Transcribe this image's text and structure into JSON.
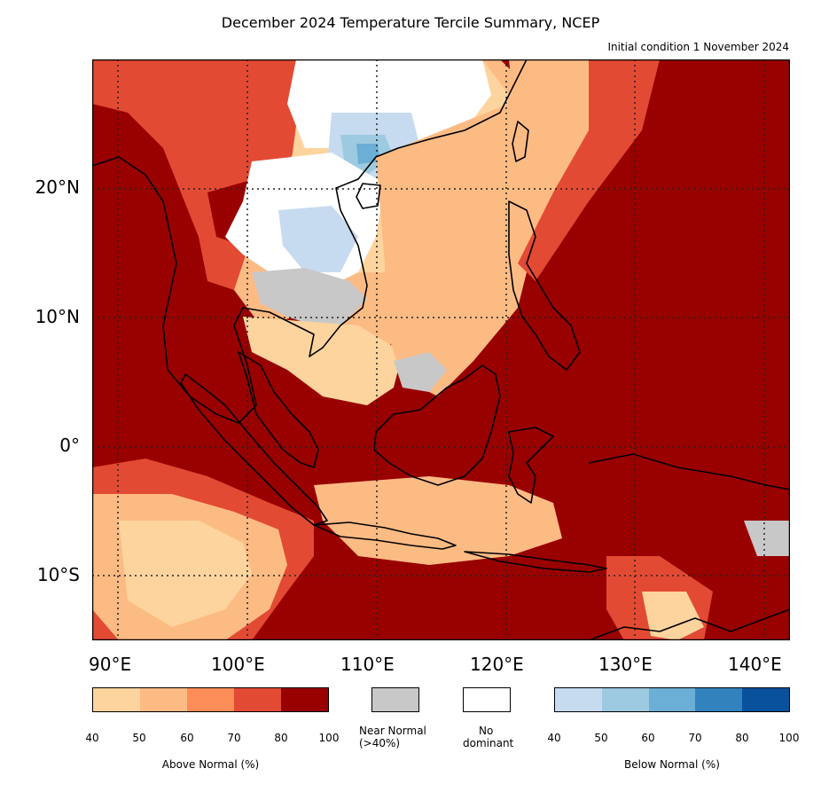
{
  "title": "December 2024 Temperature Tercile Summary, NCEP",
  "subtitle": "Initial condition 1 November 2024",
  "map": {
    "region": "Southeast Asia",
    "lon_range": [
      88,
      142
    ],
    "lat_range": [
      -15,
      30
    ],
    "lat_labels": [
      "20°N",
      "10°N",
      "0°",
      "10°S"
    ],
    "lon_labels": [
      "90°E",
      "100°E",
      "110°E",
      "120°E",
      "130°E",
      "140°E"
    ],
    "gridlines": "dotted"
  },
  "legend": {
    "above": {
      "label": "Above Normal (%)",
      "ticks": [
        "40",
        "50",
        "60",
        "70",
        "80",
        "100"
      ],
      "colors": [
        "#fdd49e",
        "#fdbb84",
        "#fc8d59",
        "#e34a33",
        "#990000"
      ]
    },
    "near": {
      "label_line1": "Near Normal",
      "label_line2": "(>40%)",
      "color": "#c8c8c8"
    },
    "none": {
      "label_line1": "No",
      "label_line2": "dominant",
      "color": "#ffffff"
    },
    "below": {
      "label": "Below Normal (%)",
      "ticks": [
        "40",
        "50",
        "60",
        "70",
        "80",
        "100"
      ],
      "colors": [
        "#c6dbef",
        "#9ecae1",
        "#6baed6",
        "#3182bd",
        "#08519c"
      ]
    }
  }
}
